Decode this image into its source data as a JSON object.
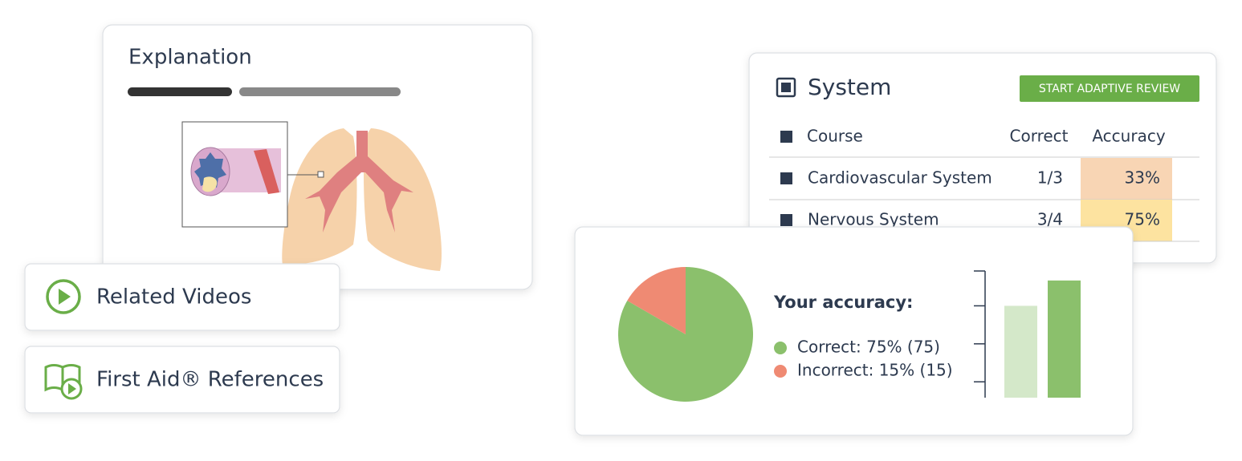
{
  "explanation": {
    "title": "Explanation"
  },
  "links": [
    {
      "label": "Related Videos"
    },
    {
      "label": "First Aid® References"
    }
  ],
  "system": {
    "title": "System",
    "button": "START ADAPTIVE REVIEW",
    "table": {
      "columns": [
        "Course",
        "Correct",
        "Accuracy"
      ],
      "rows": [
        [
          "Cardiovascular System",
          "1/3",
          "33%"
        ],
        [
          "Nervous System",
          "3/4",
          "75%"
        ]
      ],
      "accuracy_colors": [
        "#f8d5b4",
        "#fde3a0"
      ]
    }
  },
  "chart_data": [
    {
      "type": "pie",
      "title": "Your accuracy:",
      "categories": [
        "Correct: 75% (75)",
        "Incorrect: 15% (15)"
      ],
      "values": [
        75,
        15
      ],
      "colors": [
        "#8bc06c",
        "#ef8a73"
      ]
    },
    {
      "type": "bar",
      "categories": [
        null,
        null
      ],
      "values": [
        2.9,
        3.7
      ],
      "colors": [
        "#d4e8c9",
        "#8bc06c"
      ],
      "ylim": [
        0,
        4
      ],
      "yticks": [
        0.5,
        1.7,
        2.9,
        4
      ]
    }
  ]
}
